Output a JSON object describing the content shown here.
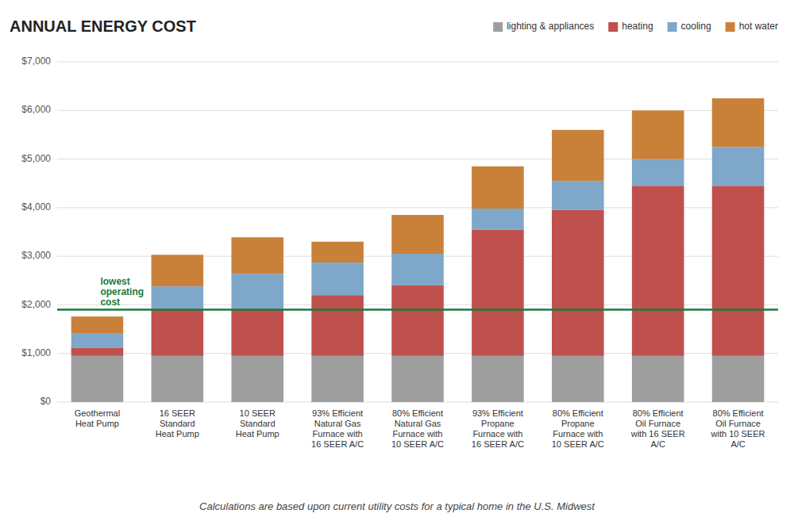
{
  "chart_data": {
    "type": "bar",
    "stacked": true,
    "title": "ANNUAL ENERGY COST",
    "subtitle": "Calculations are based upon current utility costs for a typical home in the U.S. Midwest",
    "categories": [
      "Geothermal\nHeat Pump",
      "16 SEER\nStandard\nHeat Pump",
      "10 SEER\nStandard\nHeat Pump",
      "93% Efficient\nNatural Gas\nFurnace with\n16 SEER A/C",
      "80% Efficient\nNatural Gas\nFurnace with\n10 SEER A/C",
      "93% Efficient\nPropane\nFurnace with\n16 SEER  A/C",
      "80% Efficient\nPropane\nFurnace with\n10 SEER A/C",
      "80% Efficient\nOil Furnace\nwith 16 SEER\nA/C",
      "80% Efficient\nOil Furnace\nwith 10 SEER\nA/C"
    ],
    "series": [
      {
        "name": "lighting & appliances",
        "color": "#9e9e9e",
        "values": [
          950,
          950,
          950,
          950,
          950,
          950,
          950,
          950,
          950
        ]
      },
      {
        "name": "heating",
        "color": "#c0504d",
        "values": [
          170,
          960,
          960,
          1250,
          1450,
          2600,
          3000,
          3500,
          3500
        ]
      },
      {
        "name": "cooling",
        "color": "#7fa7c9",
        "values": [
          300,
          470,
          730,
          670,
          650,
          430,
          600,
          550,
          800
        ]
      },
      {
        "name": "hot water",
        "color": "#c9813a",
        "values": [
          340,
          650,
          750,
          430,
          800,
          870,
          1050,
          1000,
          1000
        ]
      }
    ],
    "annotations": [
      {
        "text": "lowest\noperating\ncost",
        "y": 1900,
        "color": "#1a7a3a"
      }
    ],
    "ylim": [
      0,
      7000
    ],
    "yticks": [
      {
        "value": 0,
        "label": "$0"
      },
      {
        "value": 1000,
        "label": "$1,000"
      },
      {
        "value": 2000,
        "label": "$2,000"
      },
      {
        "value": 3000,
        "label": "$3,000"
      },
      {
        "value": 4000,
        "label": "$4,000"
      },
      {
        "value": 5000,
        "label": "$5,000"
      },
      {
        "value": 6000,
        "label": "$6,000"
      },
      {
        "value": 7000,
        "label": "$7,000"
      }
    ],
    "grid": true,
    "legend": "top-right"
  }
}
